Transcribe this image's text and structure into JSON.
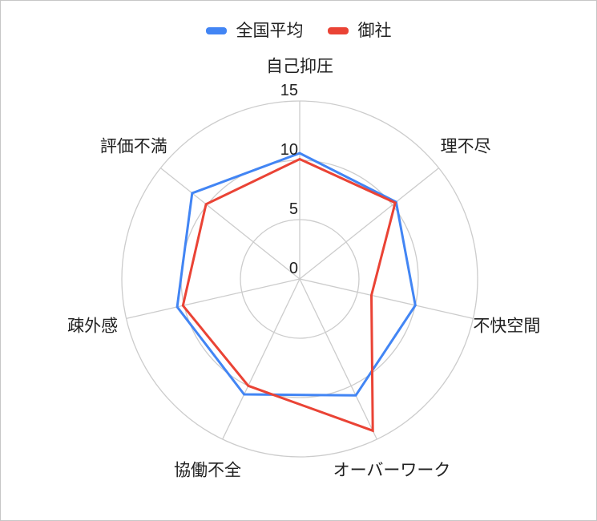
{
  "legend": {
    "items": [
      {
        "label": "全国平均",
        "color": "#4285F4"
      },
      {
        "label": "御社",
        "color": "#EA4335"
      }
    ]
  },
  "chart_data": {
    "type": "radar",
    "categories": [
      "自己抑圧",
      "理不尽",
      "不快空間",
      "オーバーワーク",
      "協働不全",
      "疎外感",
      "評価不満"
    ],
    "series": [
      {
        "name": "全国平均",
        "color": "#4285F4",
        "values": [
          10.6,
          10.4,
          10.0,
          10.9,
          10.8,
          10.6,
          11.6
        ]
      },
      {
        "name": "御社",
        "color": "#EA4335",
        "values": [
          10.1,
          10.3,
          6.2,
          14.2,
          10.0,
          10.1,
          10.1
        ]
      }
    ],
    "rlim": [
      0,
      15
    ],
    "ticks": [
      0,
      5,
      10,
      15
    ],
    "grid": "circular",
    "grid_color": "#cccccc",
    "legend_position": "top"
  }
}
